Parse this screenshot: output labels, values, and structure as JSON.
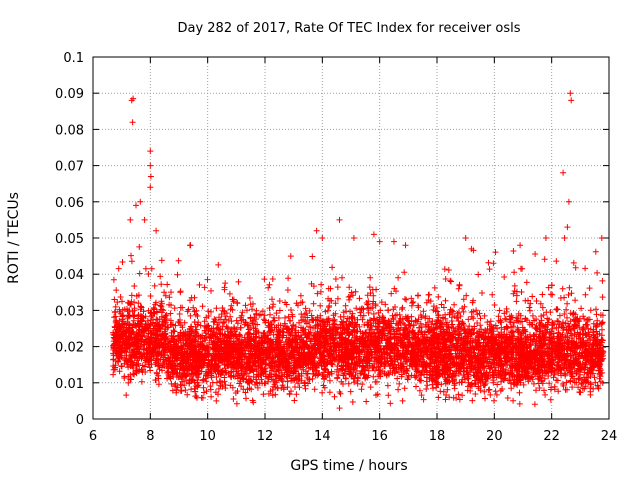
{
  "chart_data": {
    "type": "scatter",
    "title": "Day 282 of 2017, Rate Of TEC Index for receiver osls",
    "xlabel": "GPS time / hours",
    "ylabel": "ROTI / TECUs",
    "xlim": [
      6,
      24
    ],
    "ylim": [
      0,
      0.1
    ],
    "x_ticks": [
      "6",
      "8",
      "10",
      "12",
      "14",
      "16",
      "18",
      "20",
      "22",
      "24"
    ],
    "y_ticks": [
      "0",
      "0.01",
      "0.02",
      "0.03",
      "0.04",
      "0.05",
      "0.06",
      "0.07",
      "0.08",
      "0.09",
      "0.1"
    ],
    "grid": true,
    "marker": "+",
    "color": "#ff0000",
    "data_x_range": [
      6.7,
      23.8
    ],
    "series": [
      {
        "name": "ROTI",
        "notable_points": [
          {
            "x": 7.35,
            "y": 0.088
          },
          {
            "x": 7.4,
            "y": 0.0885
          },
          {
            "x": 7.38,
            "y": 0.082
          },
          {
            "x": 8.0,
            "y": 0.074
          },
          {
            "x": 8.0,
            "y": 0.07
          },
          {
            "x": 8.02,
            "y": 0.067
          },
          {
            "x": 8.0,
            "y": 0.064
          },
          {
            "x": 7.5,
            "y": 0.059
          },
          {
            "x": 7.65,
            "y": 0.06
          },
          {
            "x": 7.3,
            "y": 0.055
          },
          {
            "x": 7.8,
            "y": 0.055
          },
          {
            "x": 8.2,
            "y": 0.052
          },
          {
            "x": 22.65,
            "y": 0.09
          },
          {
            "x": 22.68,
            "y": 0.088
          },
          {
            "x": 22.4,
            "y": 0.068
          },
          {
            "x": 22.6,
            "y": 0.06
          },
          {
            "x": 22.55,
            "y": 0.053
          },
          {
            "x": 22.45,
            "y": 0.05
          },
          {
            "x": 14.6,
            "y": 0.055
          },
          {
            "x": 13.8,
            "y": 0.052
          },
          {
            "x": 14.0,
            "y": 0.05
          },
          {
            "x": 15.1,
            "y": 0.05
          },
          {
            "x": 15.8,
            "y": 0.051
          },
          {
            "x": 16.0,
            "y": 0.049
          },
          {
            "x": 16.5,
            "y": 0.049
          },
          {
            "x": 16.9,
            "y": 0.048
          },
          {
            "x": 19.0,
            "y": 0.05
          },
          {
            "x": 19.2,
            "y": 0.047
          },
          {
            "x": 20.9,
            "y": 0.048
          },
          {
            "x": 21.8,
            "y": 0.05
          },
          {
            "x": 23.75,
            "y": 0.05
          },
          {
            "x": 9.4,
            "y": 0.048
          },
          {
            "x": 12.9,
            "y": 0.045
          },
          {
            "x": 14.6,
            "y": 0.003
          },
          {
            "x": 16.8,
            "y": 0.005
          },
          {
            "x": 10.3,
            "y": 0.005
          }
        ]
      }
    ]
  }
}
